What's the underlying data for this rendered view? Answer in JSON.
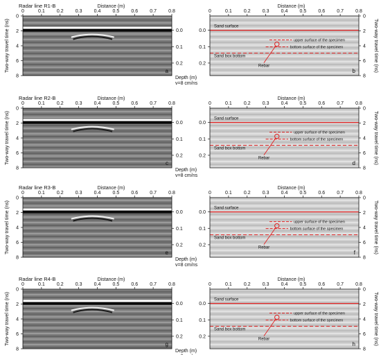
{
  "labels": {
    "distance": "Distance (m)",
    "twt": "Two-way travel time (ns)",
    "depth": "Depth (m)",
    "velocity": "v=8 cm/ns",
    "sand_surface": "Sand surface",
    "upper_surface": "upper surface of the specimen",
    "bottom_surface": "bottom surface of the specimen",
    "sand_box_bottom": "Sand box bottom",
    "rebar": "Rebar"
  },
  "x_ticks": [
    "0",
    "0.1",
    "0.2",
    "0.3",
    "0.4",
    "0.5",
    "0.6",
    "0.7",
    "0.8"
  ],
  "time_ticks": [
    "0",
    "2",
    "4",
    "6",
    "8"
  ],
  "depth_ticks": [
    "0.0",
    "0.1",
    "0.2"
  ],
  "colors": {
    "interpretation": "#e02020",
    "radargram_bg": "#808080",
    "panel_border": "#111111"
  },
  "rows": [
    {
      "title": "Radar line R1-B",
      "left_letter": "a",
      "right_letter": "b"
    },
    {
      "title": "Radar line R2-B",
      "left_letter": "c",
      "right_letter": "d"
    },
    {
      "title": "Radar line R3-B",
      "left_letter": "e",
      "right_letter": "f"
    },
    {
      "title": "Radar line R4-B",
      "left_letter": "g",
      "right_letter": "h"
    }
  ]
}
